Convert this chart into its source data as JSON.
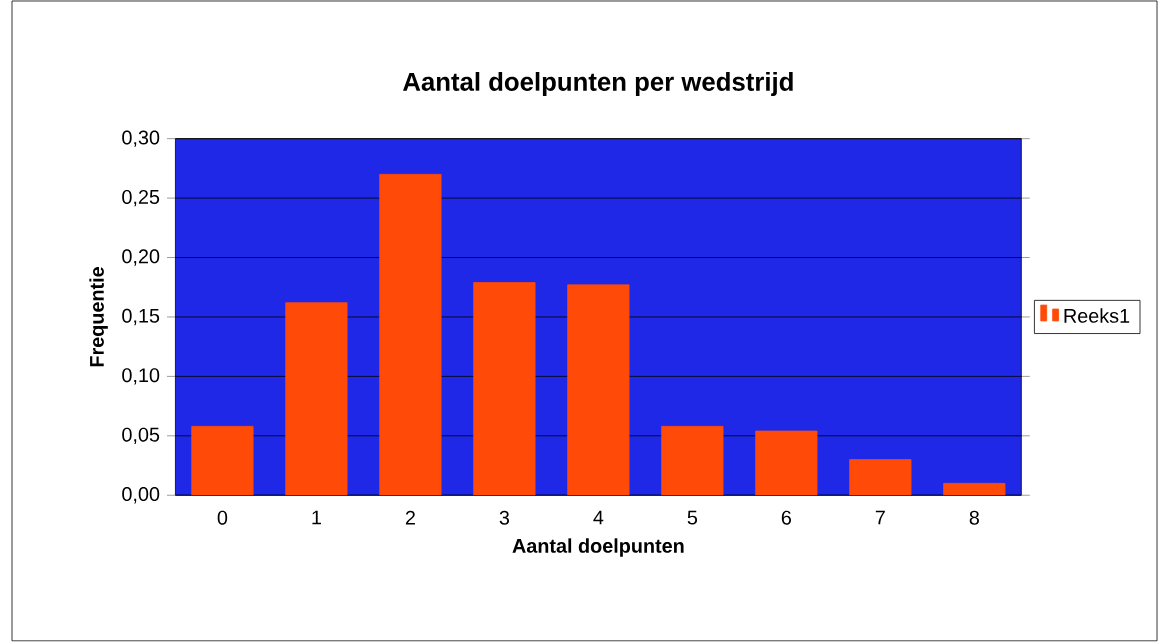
{
  "chart_data": {
    "type": "bar",
    "title": "Aantal doelpunten per wedstrijd",
    "xlabel": "Aantal doelpunten",
    "ylabel": "Frequentie",
    "categories": [
      "0",
      "1",
      "2",
      "3",
      "4",
      "5",
      "6",
      "7",
      "8"
    ],
    "series": [
      {
        "name": "Reeks1",
        "color": "#ff4a08",
        "values": [
          0.058,
          0.162,
          0.27,
          0.179,
          0.177,
          0.058,
          0.054,
          0.03,
          0.01
        ]
      }
    ],
    "ylim": [
      0,
      0.3
    ],
    "yticks": [
      {
        "value": 0,
        "label": "0,00"
      },
      {
        "value": 0.05,
        "label": "0,05"
      },
      {
        "value": 0.1,
        "label": "0,10"
      },
      {
        "value": 0.15,
        "label": "0,15"
      },
      {
        "value": 0.2,
        "label": "0,20"
      },
      {
        "value": 0.25,
        "label": "0,25"
      },
      {
        "value": 0.3,
        "label": "0,30"
      }
    ],
    "grid": "y",
    "legend": "right"
  }
}
